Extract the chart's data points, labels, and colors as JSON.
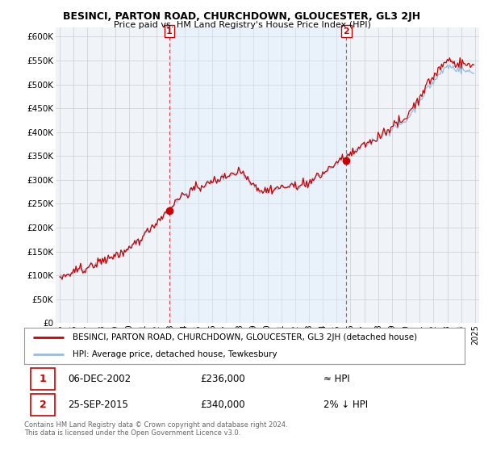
{
  "title": "BESINCI, PARTON ROAD, CHURCHDOWN, GLOUCESTER, GL3 2JH",
  "subtitle": "Price paid vs. HM Land Registry's House Price Index (HPI)",
  "legend_house": "BESINCI, PARTON ROAD, CHURCHDOWN, GLOUCESTER, GL3 2JH (detached house)",
  "legend_hpi": "HPI: Average price, detached house, Tewkesbury",
  "transaction1_date": "06-DEC-2002",
  "transaction1_price": "£236,000",
  "transaction1_hpi": "≈ HPI",
  "transaction2_date": "25-SEP-2015",
  "transaction2_price": "£340,000",
  "transaction2_hpi": "2% ↓ HPI",
  "copyright": "Contains HM Land Registry data © Crown copyright and database right 2024.\nThis data is licensed under the Open Government Licence v3.0.",
  "ylim": [
    0,
    620000
  ],
  "yticks": [
    0,
    50000,
    100000,
    150000,
    200000,
    250000,
    300000,
    350000,
    400000,
    450000,
    500000,
    550000,
    600000
  ],
  "house_color": "#cc0000",
  "hpi_color": "#99bbdd",
  "vline_color": "#cc0000",
  "shade_color": "#ddeeff",
  "background_color": "#ffffff",
  "plot_bg_color": "#f0f4f8",
  "grid_color": "#cccccc",
  "sale1_x": 2002.917,
  "sale1_y": 236000,
  "sale2_x": 2015.708,
  "sale2_y": 340000,
  "xlim_left": 1994.7,
  "xlim_right": 2025.3
}
